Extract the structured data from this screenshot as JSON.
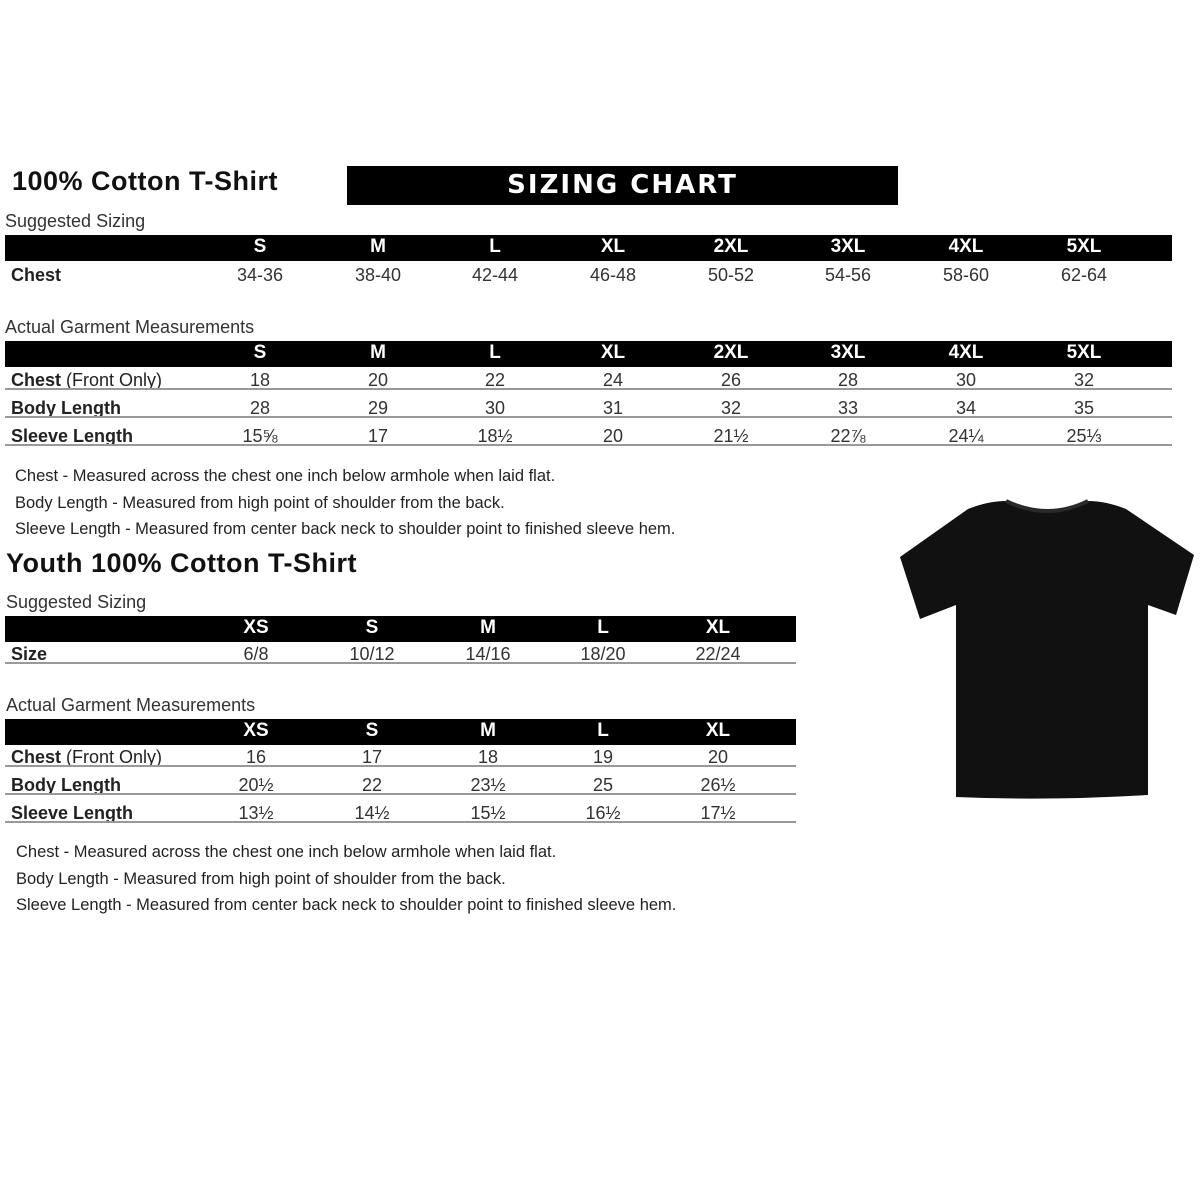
{
  "adult": {
    "title": "100% Cotton T-Shirt",
    "banner": "SIZING CHART",
    "suggested_label": "Suggested Sizing",
    "sizes": [
      "S",
      "M",
      "L",
      "XL",
      "2XL",
      "3XL",
      "4XL",
      "5XL"
    ],
    "suggested_rows": [
      {
        "label": "Chest",
        "values": [
          "34-36",
          "38-40",
          "42-44",
          "46-48",
          "50-52",
          "54-56",
          "58-60",
          "62-64"
        ]
      }
    ],
    "actual_label": "Actual Garment Measurements",
    "actual_rows": [
      {
        "label": "Chest",
        "label_suffix": " (Front Only)",
        "values": [
          "18",
          "20",
          "22",
          "24",
          "26",
          "28",
          "30",
          "32"
        ]
      },
      {
        "label": "Body Length",
        "values": [
          "28",
          "29",
          "30",
          "31",
          "32",
          "33",
          "34",
          "35"
        ]
      },
      {
        "label": "Sleeve Length",
        "values": [
          "15⅝",
          "17",
          "18½",
          "20",
          "21½",
          "22⅞",
          "24¼",
          "25⅓"
        ]
      }
    ],
    "notes": [
      "Chest - Measured across the chest one inch below armhole when laid flat.",
      "Body Length - Measured from high point of shoulder from the back.",
      "Sleeve Length - Measured from center back neck to shoulder point to finished sleeve hem."
    ]
  },
  "youth": {
    "title": "Youth 100% Cotton T-Shirt",
    "suggested_label": "Suggested Sizing",
    "sizes": [
      "XS",
      "S",
      "M",
      "L",
      "XL"
    ],
    "suggested_rows": [
      {
        "label": "Size",
        "values": [
          "6/8",
          "10/12",
          "14/16",
          "18/20",
          "22/24"
        ]
      }
    ],
    "actual_label": "Actual Garment Measurements",
    "actual_rows": [
      {
        "label": "Chest",
        "label_suffix": " (Front Only)",
        "values": [
          "16",
          "17",
          "18",
          "19",
          "20"
        ]
      },
      {
        "label": "Body Length",
        "values": [
          "20½",
          "22",
          "23½",
          "25",
          "26½"
        ]
      },
      {
        "label": "Sleeve Length",
        "values": [
          "13½",
          "14½",
          "15½",
          "16½",
          "17½"
        ]
      }
    ],
    "notes": [
      "Chest - Measured across the chest one inch below armhole when laid flat.",
      "Body Length - Measured from high point of shoulder from the back.",
      "Sleeve Length - Measured from center back neck to shoulder point to finished sleeve hem."
    ]
  },
  "image": {
    "icon": "black-tshirt-icon",
    "color": "#111111"
  }
}
